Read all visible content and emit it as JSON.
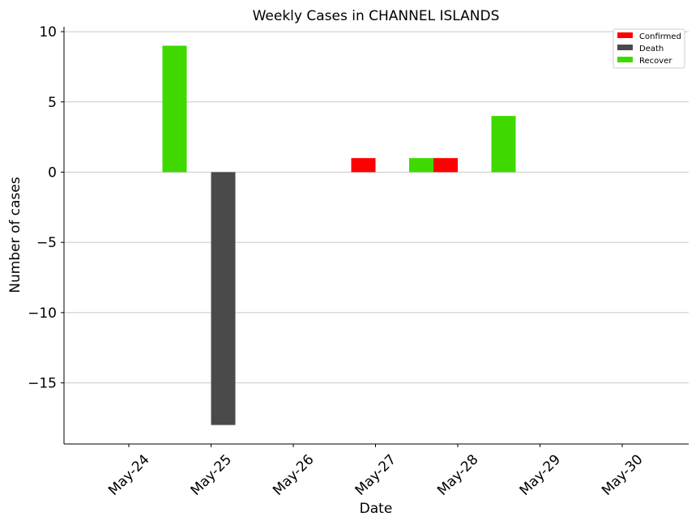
{
  "chart_data": {
    "type": "bar",
    "title": "Weekly Cases in CHANNEL ISLANDS",
    "xlabel": "Date",
    "ylabel": "Number of cases",
    "categories": [
      "May-24",
      "May-25",
      "May-26",
      "May-27",
      "May-28",
      "May-29",
      "May-30"
    ],
    "series": [
      {
        "name": "Confirmed",
        "color": "#ff0000",
        "values": [
          0,
          0,
          0,
          1,
          1,
          0,
          0
        ]
      },
      {
        "name": "Death",
        "color": "#4a4a4a",
        "values": [
          0,
          -18,
          0,
          0,
          0,
          0,
          0
        ]
      },
      {
        "name": "Recover",
        "color": "#3fd900",
        "values": [
          0,
          9,
          0,
          0,
          1,
          4,
          0
        ]
      }
    ],
    "ylim": [
      -19.35,
      10.35
    ],
    "yticks": [
      10,
      5,
      0,
      -5,
      -10,
      -15
    ],
    "ytick_labels": [
      "10",
      "5",
      "0",
      "−5",
      "−10",
      "−15"
    ],
    "grid": "horizontal",
    "legend_position": "top-right"
  }
}
